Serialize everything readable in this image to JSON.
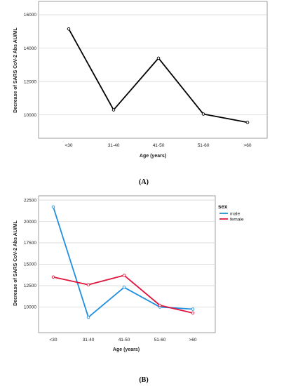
{
  "chart_data": [
    {
      "type": "line",
      "panel_label": "(A)",
      "categories": [
        "<30",
        "31-40",
        "41-50",
        "51-60",
        ">60"
      ],
      "values": [
        15150,
        10300,
        13400,
        10050,
        9550
      ],
      "xlabel": "Age (years)",
      "ylabel": "Decrease of SARS CoV-2 Abs AU/ML",
      "ylim": [
        8600,
        16800
      ],
      "yticks": [
        "10000",
        "12000",
        "14000",
        "16000"
      ],
      "ytick_values": [
        10000,
        12000,
        14000,
        16000
      ],
      "grid": "horizontal",
      "color": "#000000"
    },
    {
      "type": "line",
      "panel_label": "(B)",
      "categories": [
        "<30",
        "31-40",
        "41-50",
        "51-60",
        ">60"
      ],
      "series": [
        {
          "name": "male",
          "values": [
            21700,
            8800,
            12300,
            10000,
            9750
          ],
          "color": "#1f8fe0"
        },
        {
          "name": "female",
          "values": [
            13500,
            12600,
            13700,
            10200,
            9300
          ],
          "color": "#e0143c"
        }
      ],
      "legend_title": "sex",
      "legend_position": "top-right",
      "xlabel": "Age (years)",
      "ylabel": "Decrease of SARS CoV-2 Abs AU/ML",
      "ylim": [
        7000,
        23000
      ],
      "yticks": [
        "10000",
        "12500",
        "15000",
        "17500",
        "20000",
        "22500"
      ],
      "ytick_values": [
        10000,
        12500,
        15000,
        17500,
        20000,
        22500
      ],
      "grid": "horizontal"
    }
  ]
}
